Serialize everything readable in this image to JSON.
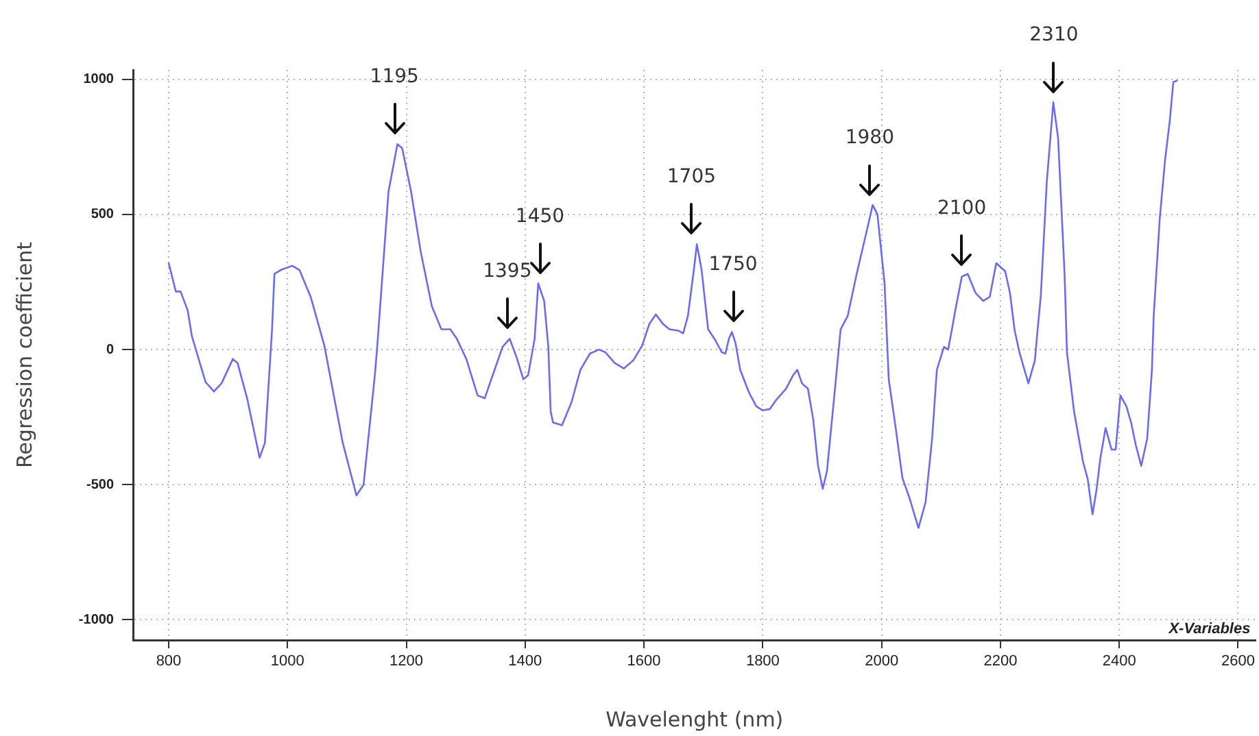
{
  "chart_data": {
    "type": "line",
    "xlabel": "Wavelenght (nm)",
    "ylabel": "Regression coefficient",
    "color": "#6b6bf2",
    "marker": "none",
    "grid": true,
    "xlim": [
      740,
      2630
    ],
    "ylim": [
      -1075,
      1035
    ],
    "xticks": [
      800,
      1000,
      1200,
      1400,
      1600,
      1800,
      2000,
      2200,
      2400,
      2600
    ],
    "yticks": [
      -1000,
      -500,
      0,
      500,
      1000
    ],
    "x": [
      800,
      812,
      820,
      832,
      839,
      862,
      876,
      889,
      908,
      916,
      932,
      953,
      962,
      974,
      978,
      989,
      1008,
      1020,
      1039,
      1062,
      1093,
      1116,
      1128,
      1147,
      1151,
      1170,
      1185,
      1193,
      1208,
      1224,
      1243,
      1259,
      1274,
      1285,
      1301,
      1320,
      1332,
      1343,
      1362,
      1374,
      1385,
      1397,
      1405,
      1416,
      1422,
      1432,
      1439,
      1443,
      1447,
      1462,
      1478,
      1493,
      1509,
      1524,
      1535,
      1551,
      1566,
      1582,
      1597,
      1609,
      1620,
      1632,
      1643,
      1658,
      1666,
      1674,
      1684,
      1689,
      1697,
      1708,
      1720,
      1731,
      1737,
      1743,
      1748,
      1754,
      1762,
      1777,
      1789,
      1800,
      1812,
      1823,
      1839,
      1851,
      1858,
      1866,
      1876,
      1885,
      1893,
      1901,
      1908,
      1920,
      1931,
      1943,
      1958,
      1974,
      1985,
      1993,
      2005,
      2012,
      2024,
      2035,
      2047,
      2062,
      2074,
      2085,
      2093,
      2105,
      2112,
      2120,
      2124,
      2135,
      2145,
      2158,
      2171,
      2182,
      2193,
      2208,
      2216,
      2224,
      2232,
      2247,
      2258,
      2262,
      2268,
      2278,
      2289,
      2297,
      2308,
      2312,
      2324,
      2339,
      2347,
      2355,
      2362,
      2368,
      2377,
      2387,
      2394,
      2402,
      2412,
      2420,
      2428,
      2437,
      2447,
      2455,
      2458,
      2468,
      2477,
      2485,
      2491,
      2497
    ],
    "values": [
      320,
      215,
      215,
      145,
      50,
      -120,
      -155,
      -125,
      -35,
      -50,
      -180,
      -400,
      -345,
      75,
      280,
      295,
      310,
      295,
      195,
      15,
      -345,
      -540,
      -500,
      -95,
      10,
      585,
      760,
      745,
      585,
      365,
      160,
      75,
      75,
      40,
      -35,
      -170,
      -180,
      -110,
      10,
      40,
      -25,
      -110,
      -95,
      40,
      245,
      180,
      10,
      -230,
      -270,
      -280,
      -195,
      -75,
      -15,
      0,
      -10,
      -50,
      -70,
      -40,
      15,
      95,
      130,
      95,
      75,
      70,
      60,
      125,
      295,
      390,
      295,
      75,
      35,
      -10,
      -15,
      40,
      65,
      25,
      -75,
      -160,
      -210,
      -225,
      -220,
      -185,
      -145,
      -95,
      -75,
      -125,
      -145,
      -260,
      -430,
      -515,
      -450,
      -180,
      75,
      125,
      280,
      430,
      535,
      500,
      245,
      -110,
      -295,
      -475,
      -550,
      -660,
      -565,
      -330,
      -75,
      10,
      0,
      95,
      145,
      270,
      280,
      210,
      180,
      195,
      320,
      290,
      210,
      70,
      -10,
      -125,
      -40,
      60,
      200,
      620,
      915,
      785,
      280,
      -10,
      -230,
      -415,
      -480,
      -610,
      -515,
      -405,
      -290,
      -370,
      -370,
      -170,
      -210,
      -270,
      -355,
      -430,
      -330,
      -75,
      125,
      480,
      700,
      845,
      990,
      995
    ],
    "annotations": [
      {
        "text": "1195",
        "x": 1180,
        "y": 760
      },
      {
        "text": "1395",
        "x": 1370,
        "y": 40
      },
      {
        "text": "1450",
        "x": 1425,
        "y": 245
      },
      {
        "text": "1705",
        "x": 1680,
        "y": 390
      },
      {
        "text": "1750",
        "x": 1750,
        "y": 65
      },
      {
        "text": "1980",
        "x": 1980,
        "y": 535
      },
      {
        "text": "2100",
        "x": 2135,
        "y": 275
      },
      {
        "text": "2310",
        "x": 2290,
        "y": 915
      },
      "X-Variables"
    ]
  }
}
